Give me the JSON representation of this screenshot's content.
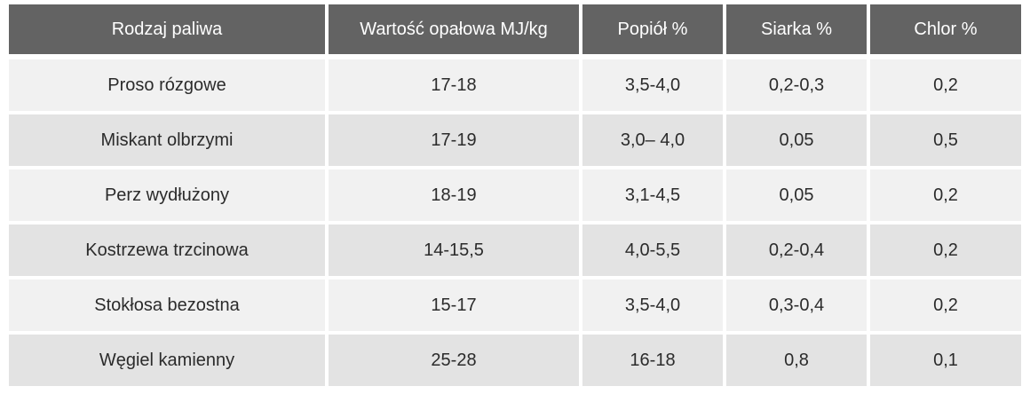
{
  "table": {
    "headers": [
      "Rodzaj paliwa",
      "Wartość opałowa MJ/kg",
      "Popiół %",
      "Siarka %",
      "Chlor %"
    ],
    "rows": [
      [
        "Proso rózgowe",
        "17-18",
        "3,5-4,0",
        "0,2-0,3",
        "0,2"
      ],
      [
        "Miskant olbrzymi",
        "17-19",
        "3,0– 4,0",
        "0,05",
        "0,5"
      ],
      [
        "Perz wydłużony",
        "18-19",
        "3,1-4,5",
        "0,05",
        "0,2"
      ],
      [
        "Kostrzewa trzcinowa",
        "14-15,5",
        "4,0-5,5",
        "0,2-0,4",
        "0,2"
      ],
      [
        "Stokłosa bezostna",
        "15-17",
        "3,5-4,0",
        "0,3-0,4",
        "0,2"
      ],
      [
        "Węgiel kamienny",
        "25-28",
        "16-18",
        "0,8",
        "0,1"
      ]
    ]
  },
  "colors": {
    "header_bg": "#636363",
    "row_light": "#f1f1f1",
    "row_dark": "#e3e3e3"
  }
}
